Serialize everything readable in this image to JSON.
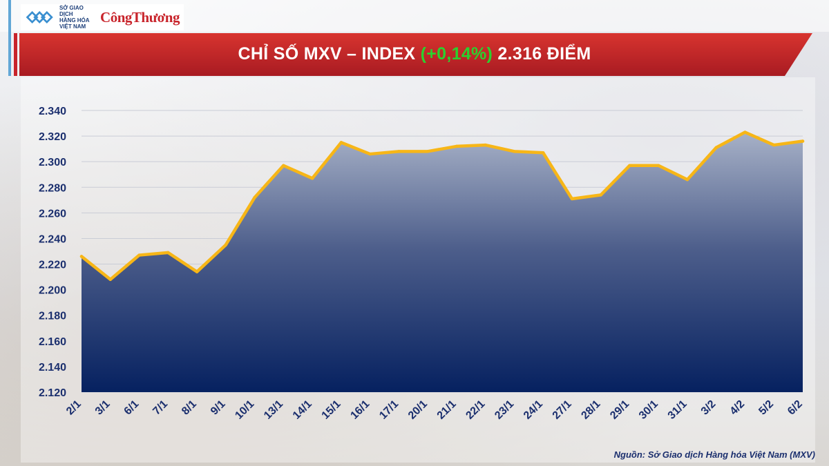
{
  "header": {
    "logo_mxv_lines": [
      "SỞ GIAO DỊCH",
      "HÀNG HÓA",
      "VIỆT NAM"
    ],
    "logo_congthuong": "CôngThương"
  },
  "title": {
    "prefix": "CHỈ SỐ MXV – INDEX ",
    "change": "(+0,14%)",
    "suffix": " 2.316 ĐIỂM"
  },
  "source": "Nguồn: Sở Giao dịch Hàng hóa Việt Nam (MXV)",
  "colors": {
    "banner_red": "#c8242b",
    "line": "#f7b617",
    "area_top": "#a7b1c7",
    "area_bottom": "#062160",
    "change_green": "#2bd12e",
    "axis_text": "#1b2f6e"
  },
  "chart_data": {
    "type": "area",
    "title": "CHỈ SỐ MXV – INDEX (+0,14%) 2.316 ĐIỂM",
    "categories": [
      "2/1",
      "3/1",
      "6/1",
      "7/1",
      "8/1",
      "9/1",
      "10/1",
      "13/1",
      "14/1",
      "15/1",
      "16/1",
      "17/1",
      "20/1",
      "21/1",
      "22/1",
      "23/1",
      "24/1",
      "27/1",
      "28/1",
      "29/1",
      "30/1",
      "31/1",
      "3/2",
      "4/2",
      "5/2",
      "6/2"
    ],
    "values": [
      2226,
      2208,
      2227,
      2229,
      2214,
      2235,
      2272,
      2297,
      2287,
      2315,
      2306,
      2308,
      2308,
      2312,
      2313,
      2308,
      2307,
      2271,
      2274,
      2297,
      2297,
      2286,
      2311,
      2323,
      2313,
      2316
    ],
    "ylim": [
      2120,
      2340
    ],
    "yticks": [
      2120,
      2140,
      2160,
      2180,
      2200,
      2220,
      2240,
      2260,
      2280,
      2300,
      2320,
      2340
    ],
    "ytick_labels": [
      "2.120",
      "2.140",
      "2.160",
      "2.180",
      "2.200",
      "2.220",
      "2.240",
      "2.260",
      "2.280",
      "2.300",
      "2.320",
      "2.340"
    ],
    "grid": true
  }
}
